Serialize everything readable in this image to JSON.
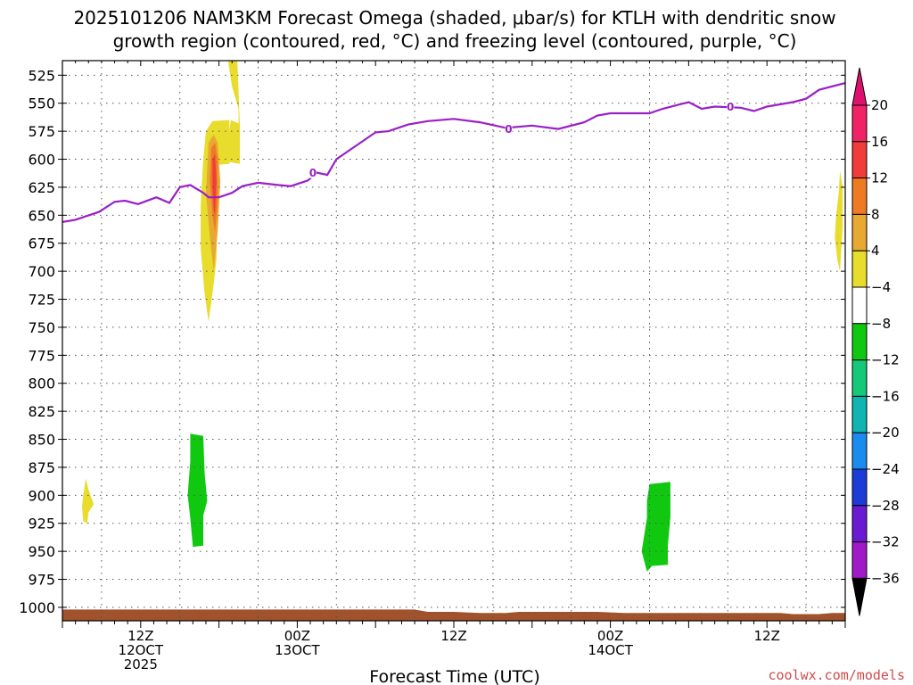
{
  "title": {
    "line1": "2025101206 NAM3KM Forecast Omega (shaded, μbar/s) for KTLH with dendritic snow",
    "line2": "growth region (contoured, red, °C) and freezing level (contoured, purple, °C)"
  },
  "credit": "coolwx.com/models",
  "chart_data": {
    "type": "time-height-contour",
    "xlabel": "Forecast Time (UTC)",
    "ylabel": "",
    "x_hours_range": [
      0,
      60
    ],
    "y_pressure_range": [
      512,
      1012
    ],
    "y_ticks": [
      525,
      550,
      575,
      600,
      625,
      650,
      675,
      700,
      725,
      750,
      775,
      800,
      825,
      850,
      875,
      900,
      925,
      950,
      975,
      1000
    ],
    "x_ticks": [
      {
        "hour": 6,
        "lines": [
          "12Z",
          "12OCT",
          "2025"
        ]
      },
      {
        "hour": 18,
        "lines": [
          "00Z",
          "13OCT"
        ]
      },
      {
        "hour": 30,
        "lines": [
          "12Z"
        ]
      },
      {
        "hour": 42,
        "lines": [
          "00Z",
          "14OCT"
        ]
      },
      {
        "hour": 54,
        "lines": [
          "12Z"
        ]
      }
    ],
    "grid": true,
    "colorbar": {
      "levels": [
        20,
        16,
        12,
        8,
        4,
        -4,
        -8,
        -12,
        -16,
        -20,
        -24,
        -28,
        -32,
        -36
      ],
      "band_colors": [
        "#f22266",
        "#f23c3c",
        "#ee7b24",
        "#e8a932",
        "#e8dc2c",
        "#ffffff",
        "#10c810",
        "#16c87a",
        "#10b4b0",
        "#1a8cf0",
        "#1c3cd8",
        "#6a1ad0",
        "#a01ac8",
        "#a8a8a8"
      ],
      "top_color": "#e0106e",
      "bottom_color": "#000000"
    },
    "freezing_level": {
      "label": "0",
      "color": "#9a1fc8",
      "label_points": [
        [
          19.2,
          612
        ],
        [
          34.2,
          573
        ],
        [
          51.2,
          553
        ]
      ],
      "points": [
        [
          0,
          656
        ],
        [
          1,
          654
        ],
        [
          2.8,
          647
        ],
        [
          4,
          638
        ],
        [
          4.8,
          637
        ],
        [
          5.8,
          640
        ],
        [
          7.2,
          634
        ],
        [
          8.2,
          639
        ],
        [
          9,
          625
        ],
        [
          9.8,
          623
        ],
        [
          10.8,
          630
        ],
        [
          11.2,
          634
        ],
        [
          12,
          634
        ],
        [
          13,
          630
        ],
        [
          13.8,
          624
        ],
        [
          15,
          621
        ],
        [
          16.5,
          623
        ],
        [
          17.5,
          624
        ],
        [
          18.8,
          619
        ],
        [
          19.5,
          612
        ],
        [
          20.3,
          614
        ],
        [
          21,
          600
        ],
        [
          22,
          592
        ],
        [
          24,
          576
        ],
        [
          25,
          575
        ],
        [
          26.5,
          569
        ],
        [
          28,
          566
        ],
        [
          30,
          564
        ],
        [
          32,
          567
        ],
        [
          34,
          572
        ],
        [
          36,
          570
        ],
        [
          38,
          573
        ],
        [
          40,
          567
        ],
        [
          41,
          561
        ],
        [
          42,
          559
        ],
        [
          45,
          559
        ],
        [
          46,
          555
        ],
        [
          48,
          549
        ],
        [
          49,
          555
        ],
        [
          50,
          553
        ],
        [
          52,
          554
        ],
        [
          53,
          557
        ],
        [
          54,
          553
        ],
        [
          56,
          549
        ],
        [
          57,
          546
        ],
        [
          58,
          538
        ],
        [
          60,
          532
        ]
      ]
    },
    "omega_regions": [
      {
        "level": 4,
        "color": "#e8dc2c",
        "points": [
          [
            12.5,
            602
          ],
          [
            12.9,
            565
          ],
          [
            13.5,
            568
          ],
          [
            13.5,
            555
          ],
          [
            13.0,
            535
          ],
          [
            12.7,
            512
          ],
          [
            13.4,
            512
          ],
          [
            13.5,
            540
          ],
          [
            13.6,
            570
          ],
          [
            13.6,
            604
          ]
        ]
      },
      {
        "level": 4,
        "color": "#e8dc2c",
        "points": [
          [
            10.8,
            600
          ],
          [
            11.0,
            575
          ],
          [
            11.5,
            566
          ],
          [
            12.8,
            565
          ],
          [
            12.8,
            604
          ],
          [
            12.0,
            605
          ],
          [
            11.9,
            640
          ],
          [
            11.8,
            690
          ],
          [
            11.5,
            720
          ],
          [
            11.2,
            745
          ],
          [
            10.9,
            720
          ],
          [
            10.6,
            680
          ],
          [
            10.6,
            640
          ]
        ]
      },
      {
        "level": 8,
        "color": "#e8a932",
        "points": [
          [
            11.2,
            585
          ],
          [
            11.6,
            578
          ],
          [
            11.9,
            585
          ],
          [
            12.1,
            620
          ],
          [
            11.9,
            665
          ],
          [
            11.6,
            700
          ],
          [
            11.3,
            670
          ],
          [
            11.0,
            630
          ]
        ]
      },
      {
        "level": 12,
        "color": "#ee7b24",
        "points": [
          [
            11.4,
            590
          ],
          [
            11.7,
            585
          ],
          [
            11.9,
            600
          ],
          [
            11.9,
            640
          ],
          [
            11.7,
            665
          ],
          [
            11.5,
            650
          ],
          [
            11.3,
            620
          ]
        ]
      },
      {
        "level": 16,
        "color": "#f23c3c",
        "points": [
          [
            11.5,
            600
          ],
          [
            11.7,
            595
          ],
          [
            11.8,
            620
          ],
          [
            11.7,
            650
          ],
          [
            11.6,
            645
          ],
          [
            11.5,
            625
          ]
        ]
      },
      {
        "level": 4,
        "color": "#e8dc2c",
        "points": [
          [
            59.3,
            650
          ],
          [
            59.5,
            630
          ],
          [
            59.6,
            610
          ],
          [
            59.8,
            625
          ],
          [
            59.8,
            660
          ],
          [
            59.6,
            700
          ],
          [
            59.4,
            690
          ],
          [
            59.2,
            670
          ]
        ]
      },
      {
        "level": 4,
        "color": "#e8dc2c",
        "points": [
          [
            1.6,
            900
          ],
          [
            1.8,
            885
          ],
          [
            2.0,
            895
          ],
          [
            2.4,
            908
          ],
          [
            2.0,
            915
          ],
          [
            1.9,
            925
          ],
          [
            1.6,
            923
          ],
          [
            1.5,
            910
          ]
        ]
      },
      {
        "level": -4,
        "color": "#10c810",
        "points": [
          [
            9.8,
            845
          ],
          [
            10.8,
            847
          ],
          [
            10.9,
            880
          ],
          [
            11.1,
            905
          ],
          [
            10.8,
            918
          ],
          [
            10.8,
            945
          ],
          [
            10.0,
            946
          ],
          [
            9.8,
            920
          ],
          [
            9.6,
            900
          ],
          [
            9.8,
            870
          ]
        ]
      },
      {
        "level": -4,
        "color": "#10c810",
        "points": [
          [
            45.0,
            890
          ],
          [
            46.6,
            888
          ],
          [
            46.6,
            920
          ],
          [
            46.4,
            945
          ],
          [
            46.4,
            962
          ],
          [
            45.2,
            963
          ],
          [
            44.8,
            968
          ],
          [
            44.4,
            950
          ],
          [
            44.8,
            920
          ],
          [
            44.8,
            905
          ]
        ]
      }
    ],
    "terrain": {
      "color": "#a0522d",
      "surface_points": [
        [
          0,
          1002
        ],
        [
          27,
          1002
        ],
        [
          28,
          1004
        ],
        [
          30,
          1004
        ],
        [
          32,
          1005
        ],
        [
          34,
          1005
        ],
        [
          35,
          1004
        ],
        [
          41,
          1004
        ],
        [
          43,
          1005
        ],
        [
          48,
          1005
        ],
        [
          55,
          1005
        ],
        [
          56,
          1006
        ],
        [
          58,
          1006
        ],
        [
          59,
          1005
        ],
        [
          60,
          1005
        ]
      ]
    }
  }
}
